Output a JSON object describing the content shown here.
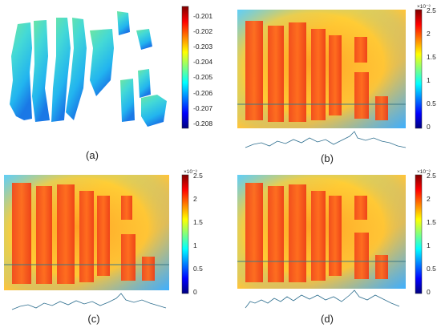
{
  "panels": [
    {
      "id": "a",
      "caption": "(a)",
      "colorbar": {
        "exponent": "",
        "ticks": [
          "-0.201",
          "-0.202",
          "-0.203",
          "-0.204",
          "-0.205",
          "-0.206",
          "-0.207",
          "-0.208"
        ]
      },
      "has_profile": false
    },
    {
      "id": "b",
      "caption": "(b)",
      "colorbar": {
        "exponent": "×10⁻³",
        "ticks": [
          "2.5",
          "2",
          "1.5",
          "1",
          "0.5",
          "0"
        ]
      },
      "has_profile": true
    },
    {
      "id": "c",
      "caption": "(c)",
      "colorbar": {
        "exponent": "×10⁻³",
        "ticks": [
          "2.5",
          "2",
          "1.5",
          "1",
          "0.5",
          "0"
        ]
      },
      "has_profile": true
    },
    {
      "id": "d",
      "caption": "(d)",
      "colorbar": {
        "exponent": "×10⁻³",
        "ticks": [
          "2.5",
          "2",
          "1.5",
          "1",
          "0.5",
          "0"
        ]
      },
      "has_profile": true
    }
  ],
  "colors": {
    "jet_dark_red": "#7f0000",
    "jet_red": "#ff0000",
    "jet_yellow": "#ffff00",
    "jet_cyan": "#00ffff",
    "jet_blue": "#0000ff",
    "jet_dark_blue": "#00007f",
    "profile_line": "#2f6f8f",
    "scan_line": "#3d7a86"
  }
}
